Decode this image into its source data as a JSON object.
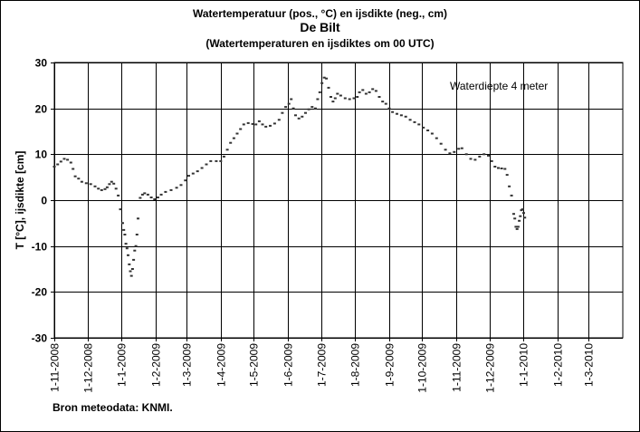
{
  "title_line1": "Watertemperatuur  (pos., °C) en ijsdikte (neg., cm)",
  "title_line2": "De Bilt",
  "title_line3": "(Watertemperaturen  en ijsdiktes om 00 UTC)",
  "source": "Bron meteodata:  KNMI.",
  "chart_data": {
    "type": "scatter",
    "ylabel": "T [°C], ijsdikte [cm]",
    "annotation": "Waterdiepte 4 meter",
    "ylim": [
      -30,
      30
    ],
    "yticks": [
      30,
      20,
      10,
      0,
      -10,
      -20,
      -30
    ],
    "xlim": [
      "2008-11-01",
      "2010-04-01"
    ],
    "xtick_labels": [
      "1-11-2008",
      "1-12-2008",
      "1-1-2009",
      "1-2-2009",
      "1-3-2009",
      "1-4-2009",
      "1-5-2009",
      "1-6-2009",
      "1-7-2009",
      "1-8-2009",
      "1-9-2009",
      "1-10-2009",
      "1-11-2009",
      "1-12-2009",
      "1-1-2010",
      "1-2-2010",
      "1-3-2010"
    ],
    "xtick_dates": [
      "2008-11-01",
      "2008-12-01",
      "2009-01-01",
      "2009-02-01",
      "2009-03-01",
      "2009-04-01",
      "2009-05-01",
      "2009-06-01",
      "2009-07-01",
      "2009-08-01",
      "2009-09-01",
      "2009-10-01",
      "2009-11-01",
      "2009-12-01",
      "2010-01-01",
      "2010-02-01",
      "2010-03-01"
    ],
    "grid": true,
    "series": [
      {
        "color": "#333333",
        "points": [
          [
            "2008-11-01",
            7.3
          ],
          [
            "2008-11-04",
            7.8
          ],
          [
            "2008-11-07",
            8.4
          ],
          [
            "2008-11-10",
            9.0
          ],
          [
            "2008-11-13",
            8.8
          ],
          [
            "2008-11-16",
            8.2
          ],
          [
            "2008-11-18",
            6.8
          ],
          [
            "2008-11-20",
            5.2
          ],
          [
            "2008-11-23",
            4.7
          ],
          [
            "2008-11-26",
            4.0
          ],
          [
            "2008-11-30",
            3.7
          ],
          [
            "2008-12-04",
            3.5
          ],
          [
            "2008-12-08",
            3.0
          ],
          [
            "2008-12-11",
            2.5
          ],
          [
            "2008-12-14",
            2.2
          ],
          [
            "2008-12-17",
            2.4
          ],
          [
            "2008-12-19",
            2.8
          ],
          [
            "2008-12-21",
            3.5
          ],
          [
            "2008-12-23",
            4.0
          ],
          [
            "2008-12-25",
            3.6
          ],
          [
            "2008-12-27",
            2.5
          ],
          [
            "2008-12-29",
            1.0
          ],
          [
            "2008-12-31",
            -2.0
          ],
          [
            "2009-01-02",
            -5.0
          ],
          [
            "2009-01-03",
            -6.5
          ],
          [
            "2009-01-04",
            -7.5
          ],
          [
            "2009-01-05",
            -9.5
          ],
          [
            "2009-01-06",
            -10.5
          ],
          [
            "2009-01-07",
            -12.0
          ],
          [
            "2009-01-08",
            -14.0
          ],
          [
            "2009-01-09",
            -15.5
          ],
          [
            "2009-01-10",
            -16.5
          ],
          [
            "2009-01-11",
            -15.0
          ],
          [
            "2009-01-12",
            -13.0
          ],
          [
            "2009-01-13",
            -11.0
          ],
          [
            "2009-01-14",
            -10.0
          ],
          [
            "2009-01-15",
            -7.5
          ],
          [
            "2009-01-16",
            -4.0
          ],
          [
            "2009-01-18",
            0.5
          ],
          [
            "2009-01-20",
            1.2
          ],
          [
            "2009-01-22",
            1.5
          ],
          [
            "2009-01-25",
            1.2
          ],
          [
            "2009-01-28",
            0.6
          ],
          [
            "2009-01-31",
            0.2
          ],
          [
            "2009-02-03",
            0.6
          ],
          [
            "2009-02-06",
            1.2
          ],
          [
            "2009-02-10",
            1.8
          ],
          [
            "2009-02-15",
            2.2
          ],
          [
            "2009-02-20",
            2.7
          ],
          [
            "2009-02-24",
            3.3
          ],
          [
            "2009-02-28",
            4.3
          ],
          [
            "2009-03-03",
            5.3
          ],
          [
            "2009-03-07",
            5.8
          ],
          [
            "2009-03-11",
            6.3
          ],
          [
            "2009-03-15",
            7.0
          ],
          [
            "2009-03-19",
            7.8
          ],
          [
            "2009-03-23",
            8.5
          ],
          [
            "2009-03-28",
            8.5
          ],
          [
            "2009-04-01",
            8.5
          ],
          [
            "2009-04-04",
            9.5
          ],
          [
            "2009-04-07",
            11.0
          ],
          [
            "2009-04-10",
            12.5
          ],
          [
            "2009-04-13",
            13.5
          ],
          [
            "2009-04-16",
            14.5
          ],
          [
            "2009-04-19",
            15.5
          ],
          [
            "2009-04-22",
            16.5
          ],
          [
            "2009-04-26",
            16.8
          ],
          [
            "2009-04-30",
            16.6
          ],
          [
            "2009-05-03",
            16.5
          ],
          [
            "2009-05-06",
            17.2
          ],
          [
            "2009-05-09",
            16.5
          ],
          [
            "2009-05-12",
            16.0
          ],
          [
            "2009-05-16",
            16.2
          ],
          [
            "2009-05-20",
            16.7
          ],
          [
            "2009-05-24",
            17.5
          ],
          [
            "2009-05-27",
            19.0
          ],
          [
            "2009-05-30",
            20.3
          ],
          [
            "2009-06-02",
            21.0
          ],
          [
            "2009-06-04",
            22.0
          ],
          [
            "2009-06-06",
            20.0
          ],
          [
            "2009-06-08",
            18.5
          ],
          [
            "2009-06-11",
            17.8
          ],
          [
            "2009-06-14",
            18.2
          ],
          [
            "2009-06-17",
            19.0
          ],
          [
            "2009-06-20",
            19.8
          ],
          [
            "2009-06-23",
            20.3
          ],
          [
            "2009-06-26",
            20.0
          ],
          [
            "2009-06-28",
            22.0
          ],
          [
            "2009-06-30",
            23.5
          ],
          [
            "2009-07-02",
            25.5
          ],
          [
            "2009-07-04",
            26.7
          ],
          [
            "2009-07-06",
            26.5
          ],
          [
            "2009-07-08",
            24.5
          ],
          [
            "2009-07-10",
            22.5
          ],
          [
            "2009-07-12",
            21.5
          ],
          [
            "2009-07-14",
            22.2
          ],
          [
            "2009-07-16",
            23.2
          ],
          [
            "2009-07-19",
            22.8
          ],
          [
            "2009-07-23",
            22.2
          ],
          [
            "2009-07-27",
            22.0
          ],
          [
            "2009-07-31",
            22.2
          ],
          [
            "2009-08-03",
            22.5
          ],
          [
            "2009-08-05",
            23.5
          ],
          [
            "2009-08-08",
            24.0
          ],
          [
            "2009-08-11",
            23.2
          ],
          [
            "2009-08-14",
            23.5
          ],
          [
            "2009-08-17",
            24.2
          ],
          [
            "2009-08-20",
            23.8
          ],
          [
            "2009-08-23",
            22.5
          ],
          [
            "2009-08-26",
            21.5
          ],
          [
            "2009-08-29",
            21.0
          ],
          [
            "2009-09-01",
            20.0
          ],
          [
            "2009-09-04",
            19.2
          ],
          [
            "2009-09-08",
            18.8
          ],
          [
            "2009-09-12",
            18.5
          ],
          [
            "2009-09-16",
            18.2
          ],
          [
            "2009-09-20",
            17.5
          ],
          [
            "2009-09-24",
            17.0
          ],
          [
            "2009-09-28",
            16.5
          ],
          [
            "2009-10-02",
            15.8
          ],
          [
            "2009-10-06",
            15.2
          ],
          [
            "2009-10-10",
            14.5
          ],
          [
            "2009-10-14",
            13.5
          ],
          [
            "2009-10-18",
            12.3
          ],
          [
            "2009-10-22",
            11.0
          ],
          [
            "2009-10-26",
            10.2
          ],
          [
            "2009-10-30",
            10.5
          ],
          [
            "2009-11-03",
            11.2
          ],
          [
            "2009-11-06",
            11.3
          ],
          [
            "2009-11-10",
            10.0
          ],
          [
            "2009-11-14",
            9.0
          ],
          [
            "2009-11-18",
            8.8
          ],
          [
            "2009-11-22",
            9.5
          ],
          [
            "2009-11-26",
            10.0
          ],
          [
            "2009-11-30",
            9.7
          ],
          [
            "2009-12-03",
            8.5
          ],
          [
            "2009-12-06",
            7.3
          ],
          [
            "2009-12-09",
            7.0
          ],
          [
            "2009-12-12",
            6.9
          ],
          [
            "2009-12-15",
            6.8
          ],
          [
            "2009-12-17",
            5.5
          ],
          [
            "2009-12-19",
            3.0
          ],
          [
            "2009-12-21",
            1.0
          ],
          [
            "2009-12-23",
            -3.0
          ],
          [
            "2009-12-24",
            -4.0
          ],
          [
            "2009-12-25",
            -5.8
          ],
          [
            "2009-12-26",
            -6.3
          ],
          [
            "2009-12-27",
            -5.8
          ],
          [
            "2009-12-28",
            -4.5
          ],
          [
            "2009-12-29",
            -3.5
          ],
          [
            "2009-12-30",
            -2.2
          ],
          [
            "2009-12-31",
            -2.0
          ],
          [
            "2010-01-01",
            -2.8
          ],
          [
            "2010-01-02",
            -3.8
          ]
        ]
      }
    ]
  }
}
